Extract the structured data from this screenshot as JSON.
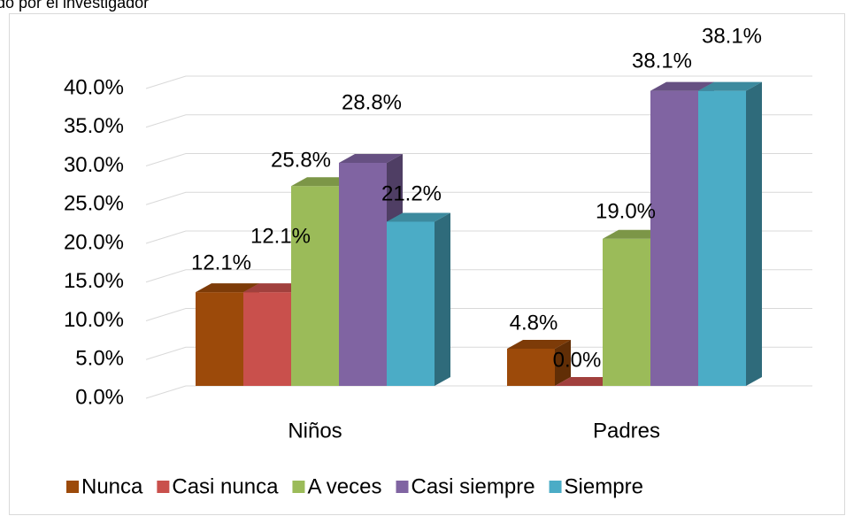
{
  "chart_data": {
    "type": "bar3d",
    "caption": "do por el investigador",
    "categories": [
      "Niños",
      "Padres"
    ],
    "series": [
      {
        "name": "Nunca",
        "color": "#9c4a0a",
        "values": [
          12.1,
          4.8
        ],
        "value_labels": [
          "12.1%",
          "4.8%"
        ]
      },
      {
        "name": "Casi nunca",
        "color": "#c9504c",
        "values": [
          12.1,
          0.0
        ],
        "value_labels": [
          "12.1%",
          "0.0%"
        ]
      },
      {
        "name": "A veces",
        "color": "#9bbb59",
        "values": [
          25.8,
          19.0
        ],
        "value_labels": [
          "25.8%",
          "19.0%"
        ]
      },
      {
        "name": "Casi siempre",
        "color": "#8064a2",
        "values": [
          28.8,
          38.1
        ],
        "value_labels": [
          "28.8%",
          "38.1%"
        ]
      },
      {
        "name": "Siempre",
        "color": "#4bacc6",
        "values": [
          21.2,
          38.1
        ],
        "value_labels": [
          "21.2%",
          "38.1%"
        ]
      }
    ],
    "ylim": [
      0,
      40
    ],
    "yticks": [
      {
        "value": 0,
        "label": "0.0%"
      },
      {
        "value": 5,
        "label": "5.0%"
      },
      {
        "value": 10,
        "label": "10.0%"
      },
      {
        "value": 15,
        "label": "15.0%"
      },
      {
        "value": 20,
        "label": "20.0%"
      },
      {
        "value": 25,
        "label": "25.0%"
      },
      {
        "value": 30,
        "label": "30.0%"
      },
      {
        "value": 35,
        "label": "35.0%"
      },
      {
        "value": 40,
        "label": "40.0%"
      }
    ],
    "grid": true,
    "legend": "bottom"
  }
}
